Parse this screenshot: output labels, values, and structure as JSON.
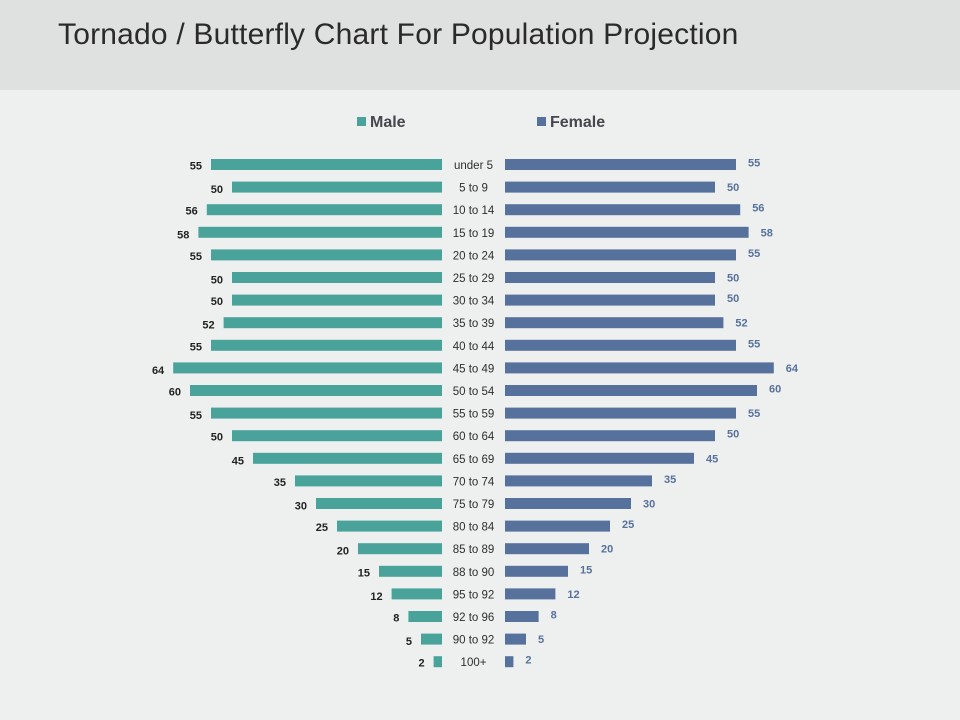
{
  "page": {
    "title": "Tornado / Butterfly Chart For Population Projection"
  },
  "colors": {
    "male": "#4aa39b",
    "female": "#56729c",
    "male_label": "#222222",
    "female_label": "#56729c"
  },
  "chart_data": {
    "type": "bar",
    "orientation": "horizontal-butterfly",
    "title": "Tornado / Butterfly Chart For Population Projection",
    "legend_position": "top",
    "grid": false,
    "categories": [
      "under 5",
      "5 to 9",
      "10 to 14",
      "15 to 19",
      "20 to 24",
      "25 to 29",
      "30 to 34",
      "35 to 39",
      "40 to 44",
      "45 to 49",
      "50  to 54",
      "55 to 59",
      "60 to 64",
      "65 to 69",
      "70 to 74",
      "75 to 79",
      "80 to 84",
      "85 to 89",
      "88 to 90",
      "95 to 92",
      "92 to 96",
      "90 to 92",
      "100+"
    ],
    "series": [
      {
        "name": "Male",
        "values": [
          55,
          50,
          56,
          58,
          55,
          50,
          50,
          52,
          55,
          64,
          60,
          55,
          50,
          45,
          35,
          30,
          25,
          20,
          15,
          12,
          8,
          5,
          2
        ]
      },
      {
        "name": "Female",
        "values": [
          55,
          50,
          56,
          58,
          55,
          50,
          50,
          52,
          55,
          64,
          60,
          55,
          50,
          45,
          35,
          30,
          25,
          20,
          15,
          12,
          8,
          5,
          2
        ]
      }
    ]
  }
}
